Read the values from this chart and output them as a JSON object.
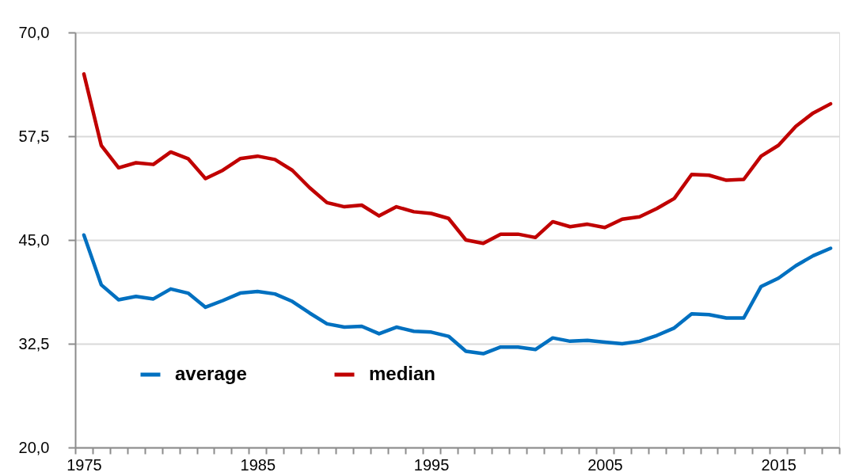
{
  "chart_data": {
    "type": "line",
    "x": [
      1975,
      1976,
      1977,
      1978,
      1979,
      1980,
      1981,
      1982,
      1983,
      1984,
      1985,
      1986,
      1987,
      1988,
      1989,
      1990,
      1991,
      1992,
      1993,
      1994,
      1995,
      1996,
      1997,
      1998,
      1999,
      2000,
      2001,
      2002,
      2003,
      2004,
      2005,
      2006,
      2007,
      2008,
      2009,
      2010,
      2011,
      2012,
      2013,
      2014,
      2015,
      2016,
      2017,
      2018
    ],
    "series": [
      {
        "name": "average",
        "color": "#0070c0",
        "values": [
          45.6,
          39.6,
          37.8,
          38.2,
          37.9,
          39.1,
          38.6,
          36.9,
          37.7,
          38.6,
          38.8,
          38.5,
          37.6,
          36.2,
          34.9,
          34.5,
          34.6,
          33.7,
          34.5,
          34.0,
          33.9,
          33.4,
          31.6,
          31.3,
          32.1,
          32.1,
          31.8,
          33.2,
          32.8,
          32.9,
          32.7,
          32.5,
          32.8,
          33.5,
          34.4,
          36.1,
          36.0,
          35.6,
          35.6,
          39.4,
          40.4,
          41.9,
          43.1,
          44.0
        ]
      },
      {
        "name": "median",
        "color": "#c00000",
        "values": [
          65.0,
          56.4,
          53.7,
          54.3,
          54.1,
          55.6,
          54.8,
          52.4,
          53.4,
          54.8,
          55.1,
          54.7,
          53.4,
          51.3,
          49.5,
          49.0,
          49.2,
          47.9,
          49.0,
          48.4,
          48.2,
          47.6,
          45.0,
          44.6,
          45.7,
          45.7,
          45.3,
          47.2,
          46.6,
          46.9,
          46.5,
          47.5,
          47.8,
          48.8,
          50.0,
          52.9,
          52.8,
          52.2,
          52.3,
          55.1,
          56.4,
          58.7,
          60.3,
          61.4
        ]
      }
    ],
    "xlim": [
      1974.5,
      2018.5
    ],
    "xticks": [
      {
        "value": 1974.5,
        "label": null
      },
      1975,
      {
        "value": 1975.5,
        "label": null
      },
      {
        "value": 1976.5,
        "label": null
      },
      {
        "value": 1977.5,
        "label": null
      },
      {
        "value": 1978.5,
        "label": null
      },
      {
        "value": 1979.5,
        "label": null
      },
      {
        "value": 1980.5,
        "label": null
      },
      {
        "value": 1981.5,
        "label": null
      },
      {
        "value": 1982.5,
        "label": null
      },
      {
        "value": 1983.5,
        "label": null
      },
      {
        "value": 1984.5,
        "label": null
      },
      1985,
      {
        "value": 1985.5,
        "label": null
      },
      {
        "value": 1986.5,
        "label": null
      },
      {
        "value": 1987.5,
        "label": null
      },
      {
        "value": 1988.5,
        "label": null
      },
      {
        "value": 1989.5,
        "label": null
      },
      {
        "value": 1990.5,
        "label": null
      },
      {
        "value": 1991.5,
        "label": null
      },
      {
        "value": 1992.5,
        "label": null
      },
      {
        "value": 1993.5,
        "label": null
      },
      {
        "value": 1994.5,
        "label": null
      },
      1995,
      {
        "value": 1995.5,
        "label": null
      },
      {
        "value": 1996.5,
        "label": null
      },
      {
        "value": 1997.5,
        "label": null
      },
      {
        "value": 1998.5,
        "label": null
      },
      {
        "value": 1999.5,
        "label": null
      },
      {
        "value": 2000.5,
        "label": null
      },
      {
        "value": 2001.5,
        "label": null
      },
      {
        "value": 2002.5,
        "label": null
      },
      {
        "value": 2003.5,
        "label": null
      },
      {
        "value": 2004.5,
        "label": null
      },
      2005,
      {
        "value": 2005.5,
        "label": null
      },
      {
        "value": 2006.5,
        "label": null
      },
      {
        "value": 2007.5,
        "label": null
      },
      {
        "value": 2008.5,
        "label": null
      },
      {
        "value": 2009.5,
        "label": null
      },
      {
        "value": 2010.5,
        "label": null
      },
      {
        "value": 2011.5,
        "label": null
      },
      {
        "value": 2012.5,
        "label": null
      },
      {
        "value": 2013.5,
        "label": null
      },
      {
        "value": 2014.5,
        "label": null
      },
      2015,
      {
        "value": 2015.5,
        "label": null
      },
      {
        "value": 2016.5,
        "label": null
      },
      {
        "value": 2017.5,
        "label": null
      },
      {
        "value": 2018.5,
        "label": null
      }
    ],
    "ylim": [
      20,
      70
    ],
    "yticks": [
      {
        "value": 20,
        "label": "20,0"
      },
      {
        "value": 32.5,
        "label": "32,5"
      },
      {
        "value": 45,
        "label": "45,0"
      },
      {
        "value": 57.5,
        "label": "57,5"
      },
      {
        "value": 70,
        "label": "70,0"
      }
    ],
    "grid": "y",
    "legend": "bottom left"
  }
}
